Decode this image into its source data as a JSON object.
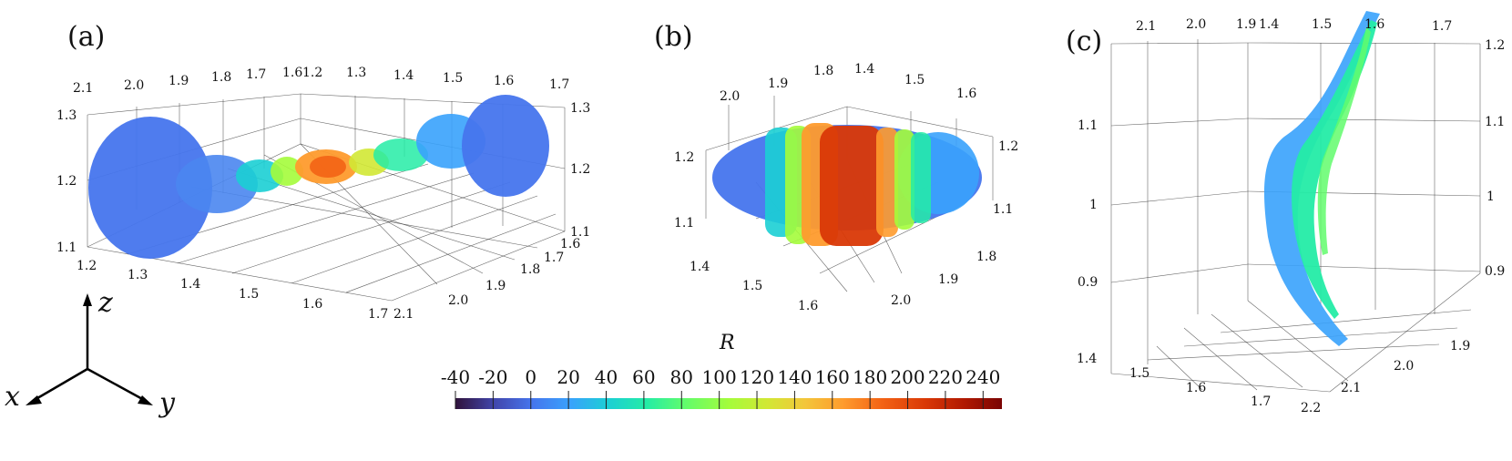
{
  "figure": {
    "panels": [
      {
        "id": "a",
        "label": "(a)"
      },
      {
        "id": "b",
        "label": "(b)"
      },
      {
        "id": "c",
        "label": "(c)"
      }
    ],
    "axes_triad": {
      "x": "x",
      "y": "y",
      "z": "z"
    },
    "colorbar": {
      "title": "R",
      "ticks": [
        "-40",
        "-20",
        "0",
        "20",
        "40",
        "60",
        "80",
        "100",
        "120",
        "140",
        "160",
        "180",
        "200",
        "220",
        "240"
      ],
      "range": [
        -40,
        250
      ],
      "colormap": "turbo"
    }
  },
  "chart_data": [
    {
      "panel": "a",
      "type": "scatter",
      "title": "(a)",
      "description": "3D point cloud, dumbbell shape along x/y, colored by R",
      "tick_labels": {
        "back_x": [
          "2.1",
          "2.0",
          "1.9",
          "1.8",
          "1.7",
          "1.6"
        ],
        "back_y": [
          "1.2",
          "1.3",
          "1.4",
          "1.5",
          "1.6",
          "1.7"
        ],
        "z_left": [
          "1.3",
          "1.2",
          "1.1"
        ],
        "z_right": [
          "1.3",
          "1.2",
          "1.1"
        ],
        "front_y": [
          "1.2",
          "1.3",
          "1.4",
          "1.5",
          "1.6",
          "1.7"
        ],
        "front_x": [
          "2.1",
          "2.0",
          "1.9",
          "1.8",
          "1.7",
          "1.6"
        ]
      },
      "clusters": [
        {
          "name": "left lobe",
          "R_approx": 10
        },
        {
          "name": "neck",
          "R_approx": 130
        },
        {
          "name": "center",
          "R_approx": 180
        },
        {
          "name": "right lobe",
          "R_approx": 5
        }
      ]
    },
    {
      "panel": "b",
      "type": "scatter",
      "title": "(b)",
      "description": "3D point cloud, ellipsoidal shape colored by R, high R in middle",
      "tick_labels": {
        "top_x": [
          "2.0",
          "1.9",
          "1.8"
        ],
        "top_y": [
          "1.4",
          "1.5",
          "1.6"
        ],
        "z_left": [
          "1.2",
          "1.1"
        ],
        "z_right": [
          "1.2",
          "1.1"
        ],
        "bottom_y": [
          "1.4",
          "1.5",
          "1.6"
        ],
        "bottom_x": [
          "2.0",
          "1.9",
          "1.8"
        ]
      },
      "clusters": [
        {
          "name": "left cap",
          "R_approx": 20
        },
        {
          "name": "center band",
          "R_approx": 200
        },
        {
          "name": "right cap",
          "R_approx": 30
        }
      ]
    },
    {
      "panel": "c",
      "type": "scatter",
      "title": "(c)",
      "description": "3D point cloud viewed edge-on, thin curved sheet colored by R",
      "tick_labels": {
        "top_x": [
          "2.1",
          "2.0",
          "1.9"
        ],
        "top_y": [
          "1.4",
          "1.5",
          "1.6",
          "1.7"
        ],
        "z_left": [
          "1.1",
          "1",
          "0.9"
        ],
        "z_right": [
          "1.2",
          "1.1",
          "1",
          "0.9"
        ],
        "bottom_y": [
          "1.4",
          "1.5",
          "1.6",
          "1.7"
        ],
        "bottom_x": [
          "2.2",
          "2.1",
          "2.0",
          "1.9"
        ]
      },
      "clusters": [
        {
          "name": "sheet",
          "R_approx": 60
        }
      ]
    }
  ]
}
